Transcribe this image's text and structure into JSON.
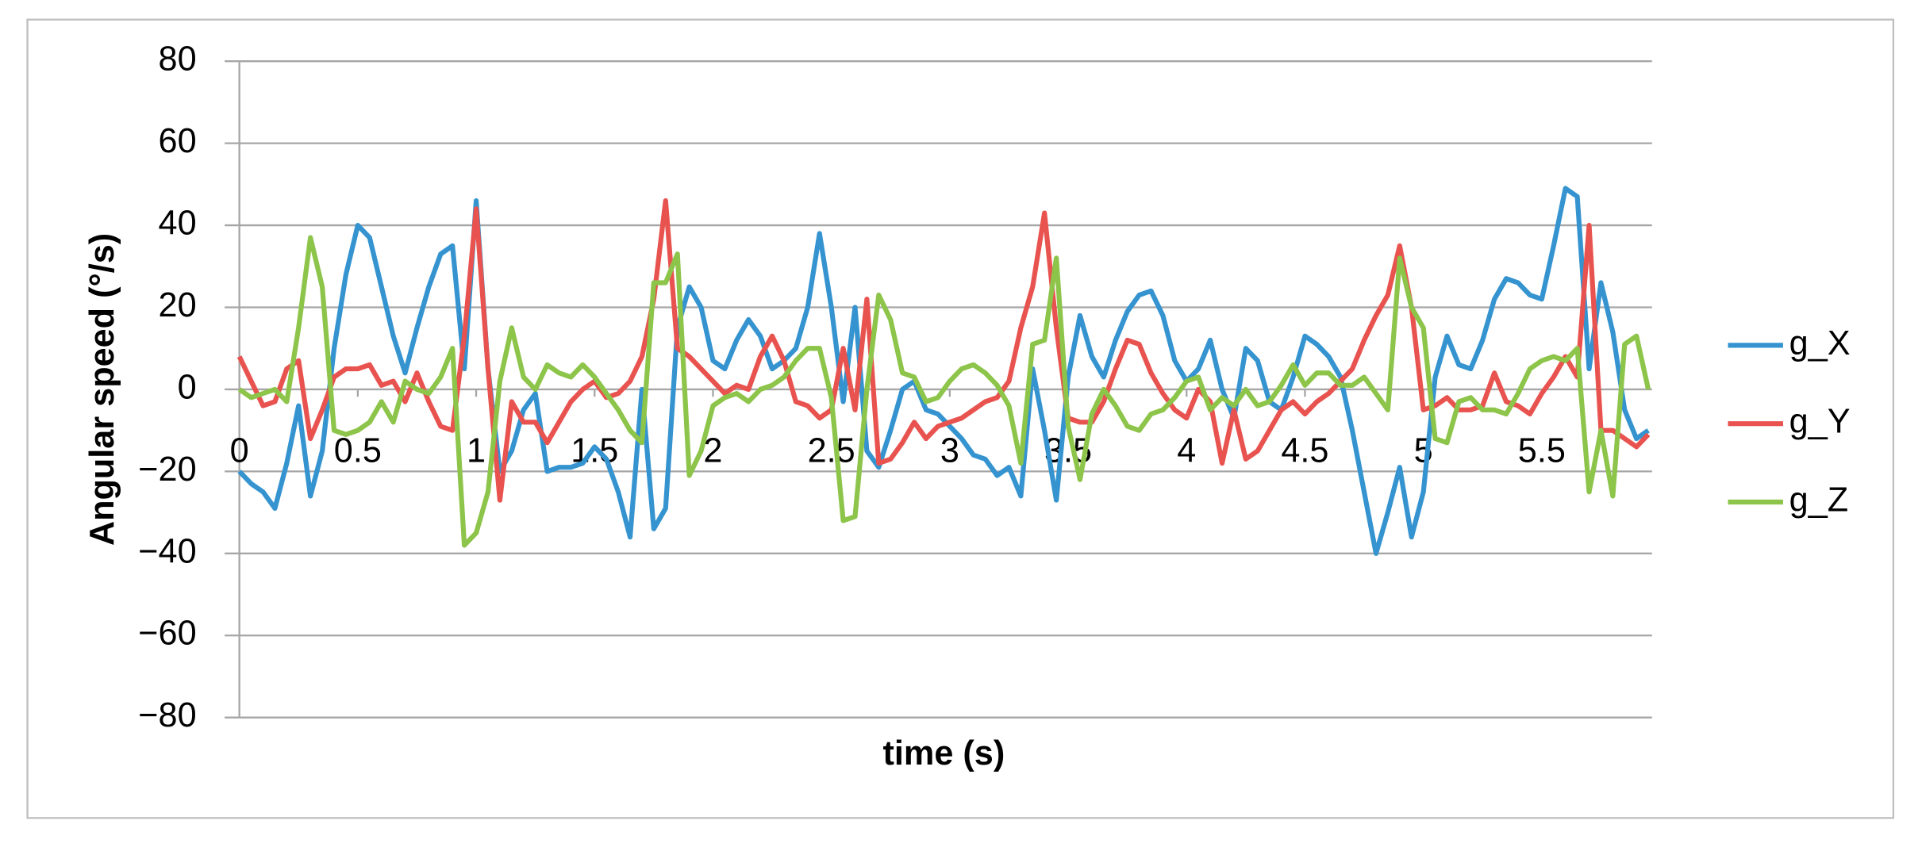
{
  "chart_data": {
    "type": "line",
    "x_label": "time (s)",
    "y_label": "Angular speed (°/s)",
    "xlim": [
      0,
      5.95
    ],
    "ylim": [
      -80,
      80
    ],
    "xticks": [
      0,
      0.5,
      1,
      1.5,
      2,
      2.5,
      3,
      3.5,
      4,
      4.5,
      5,
      5.5
    ],
    "yticks": [
      {
        "value": -80,
        "label": "−80"
      },
      {
        "value": -60,
        "label": "−60"
      },
      {
        "value": -40,
        "label": "−40"
      },
      {
        "value": -20,
        "label": "−20"
      },
      0,
      20,
      40,
      60,
      80
    ],
    "grid": true,
    "legend": "right",
    "x": [
      0,
      0.05,
      0.1,
      0.15,
      0.2,
      0.25,
      0.3,
      0.35,
      0.4,
      0.45,
      0.5,
      0.55,
      0.6,
      0.65,
      0.7,
      0.75,
      0.8,
      0.85,
      0.9,
      0.95,
      1,
      1.05,
      1.1,
      1.15,
      1.2,
      1.25,
      1.3,
      1.35,
      1.4,
      1.45,
      1.5,
      1.55,
      1.6,
      1.65,
      1.7,
      1.75,
      1.8,
      1.85,
      1.9,
      1.95,
      2,
      2.05,
      2.1,
      2.15,
      2.2,
      2.25,
      2.3,
      2.35,
      2.4,
      2.45,
      2.5,
      2.55,
      2.6,
      2.65,
      2.7,
      2.75,
      2.8,
      2.85,
      2.9,
      2.95,
      3,
      3.05,
      3.1,
      3.15,
      3.2,
      3.25,
      3.3,
      3.35,
      3.4,
      3.45,
      3.5,
      3.55,
      3.6,
      3.65,
      3.7,
      3.75,
      3.8,
      3.85,
      3.9,
      3.95,
      4,
      4.05,
      4.1,
      4.15,
      4.2,
      4.25,
      4.3,
      4.35,
      4.4,
      4.45,
      4.5,
      4.55,
      4.6,
      4.65,
      4.7,
      4.75,
      4.8,
      4.85,
      4.9,
      4.95,
      5,
      5.05,
      5.1,
      5.15,
      5.2,
      5.25,
      5.3,
      5.35,
      5.4,
      5.45,
      5.5,
      5.55,
      5.6,
      5.65,
      5.7,
      5.75,
      5.8,
      5.85,
      5.9,
      5.95
    ],
    "series": [
      {
        "name": "g_X",
        "color": "#3594d0",
        "values": [
          -20,
          -23,
          -25,
          -29,
          -18,
          -4,
          -26,
          -15,
          10,
          28,
          40,
          37,
          25,
          13,
          4,
          15,
          25,
          33,
          35,
          5,
          46,
          5,
          -20,
          -15,
          -5,
          -1,
          -20,
          -19,
          -19,
          -18,
          -14,
          -17,
          -25,
          -36,
          0,
          -34,
          -29,
          15,
          25,
          20,
          7,
          5,
          12,
          17,
          13,
          5,
          7,
          10,
          20,
          38,
          20,
          -3,
          20,
          -15,
          -19,
          -10,
          0,
          2,
          -5,
          -6,
          -9,
          -12,
          -16,
          -17,
          -21,
          -19,
          -26,
          5,
          -10,
          -27,
          3,
          18,
          8,
          3,
          12,
          19,
          23,
          24,
          18,
          7,
          2,
          5,
          12,
          0,
          -7,
          10,
          7,
          -3,
          -5,
          3,
          13,
          11,
          8,
          3,
          -10,
          -25,
          -40,
          -30,
          -19,
          -36,
          -25,
          3,
          13,
          6,
          5,
          12,
          22,
          27,
          26,
          23,
          22,
          35,
          49,
          47,
          5,
          26,
          14,
          -5,
          -12,
          -10
        ]
      },
      {
        "name": "g_Y",
        "color": "#e8534f",
        "values": [
          8,
          2,
          -4,
          -3,
          5,
          7,
          -12,
          -5,
          3,
          5,
          5,
          6,
          1,
          2,
          -3,
          4,
          -3,
          -9,
          -10,
          13,
          44,
          5,
          -27,
          -3,
          -8,
          -8,
          -13,
          -8,
          -3,
          0,
          2,
          -2,
          -1,
          2,
          8,
          22,
          46,
          10,
          8,
          5,
          2,
          -1,
          1,
          0,
          8,
          13,
          7,
          -3,
          -4,
          -7,
          -5,
          10,
          -5,
          22,
          -18,
          -17,
          -13,
          -8,
          -12,
          -9,
          -8,
          -7,
          -5,
          -3,
          -2,
          2,
          15,
          25,
          43,
          15,
          -7,
          -8,
          -8,
          -3,
          5,
          12,
          11,
          4,
          -1,
          -5,
          -7,
          0,
          -3,
          -18,
          -5,
          -17,
          -15,
          -10,
          -5,
          -3,
          -6,
          -3,
          -1,
          2,
          5,
          12,
          18,
          23,
          35,
          20,
          -5,
          -4,
          -2,
          -5,
          -5,
          -4,
          4,
          -3,
          -4,
          -6,
          -1,
          3,
          8,
          3,
          40,
          -10,
          -10,
          -12,
          -14,
          -11
        ]
      },
      {
        "name": "g_Z",
        "color": "#8dc44a",
        "values": [
          0,
          -2,
          -1,
          0,
          -3,
          15,
          37,
          25,
          -10,
          -11,
          -10,
          -8,
          -3,
          -8,
          2,
          0,
          -1,
          3,
          10,
          -38,
          -35,
          -25,
          2,
          15,
          3,
          0,
          6,
          4,
          3,
          6,
          3,
          -1,
          -5,
          -10,
          -13,
          26,
          26,
          33,
          -21,
          -15,
          -4,
          -2,
          -1,
          -3,
          0,
          1,
          3,
          7,
          10,
          10,
          -2,
          -32,
          -31,
          0,
          23,
          17,
          4,
          3,
          -3,
          -2,
          2,
          5,
          6,
          4,
          1,
          -4,
          -18,
          11,
          12,
          32,
          -9,
          -22,
          -6,
          0,
          -4,
          -9,
          -10,
          -6,
          -5,
          -2,
          2,
          3,
          -5,
          -2,
          -4,
          0,
          -4,
          -3,
          1,
          6,
          1,
          4,
          4,
          1,
          1,
          3,
          -1,
          -5,
          32,
          20,
          15,
          -12,
          -13,
          -3,
          -2,
          -5,
          -5,
          -6,
          -1,
          5,
          7,
          8,
          7,
          10,
          -25,
          -10,
          -26,
          11,
          13,
          0
        ]
      }
    ]
  }
}
